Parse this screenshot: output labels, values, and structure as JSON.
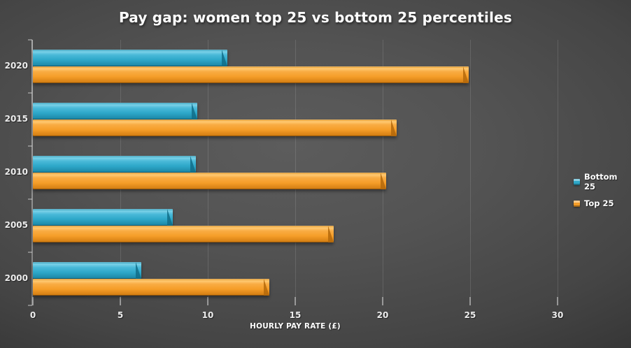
{
  "title": "Pay gap: women top 25 vs bottom 25 percentiles",
  "chart_data": {
    "type": "bar",
    "orientation": "horizontal",
    "title": "Pay gap: women top 25 vs bottom 25 percentiles",
    "categories": [
      "2020",
      "2015",
      "2010",
      "2005",
      "2000"
    ],
    "series": [
      {
        "name": "Bottom 25",
        "color": "#2da7c8",
        "values": [
          11.1,
          9.4,
          9.3,
          8.0,
          6.2
        ]
      },
      {
        "name": "Top 25",
        "color": "#f59d28",
        "values": [
          24.9,
          20.8,
          20.2,
          17.2,
          13.5
        ]
      }
    ],
    "xlabel": "HOURLY PAY RATE (£)",
    "xticks": [
      0,
      5,
      10,
      15,
      20,
      25,
      30
    ],
    "xlim": [
      0,
      32.5
    ],
    "grid": true,
    "legend_position": "right",
    "background": "dark-gray-gradient",
    "bar_style": "3d-bevel"
  }
}
